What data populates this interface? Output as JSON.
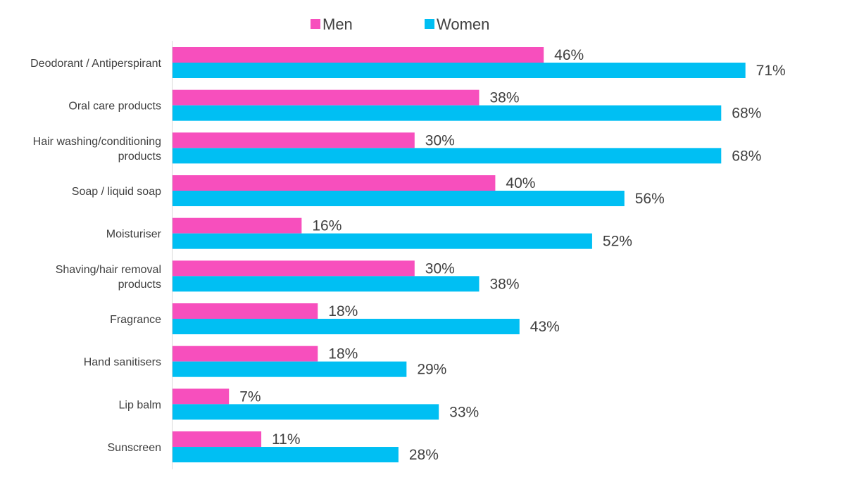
{
  "chart_data": {
    "type": "bar",
    "orientation": "horizontal",
    "categories": [
      [
        "Deodorant / Antiperspirant"
      ],
      [
        "Oral care products"
      ],
      [
        "Hair washing/conditioning",
        "products"
      ],
      [
        "Soap / liquid soap"
      ],
      [
        "Moisturiser"
      ],
      [
        "Shaving/hair removal",
        "products"
      ],
      [
        "Fragrance"
      ],
      [
        "Hand sanitisers"
      ],
      [
        "Lip balm"
      ],
      [
        "Sunscreen"
      ]
    ],
    "series": [
      {
        "name": "Men",
        "color": "#f74fbd",
        "values": [
          46,
          38,
          30,
          40,
          16,
          30,
          18,
          18,
          7,
          11
        ]
      },
      {
        "name": "Women",
        "color": "#00bff3",
        "values": [
          71,
          68,
          68,
          56,
          52,
          38,
          43,
          29,
          33,
          28
        ]
      }
    ],
    "value_suffix": "%",
    "xlim": [
      0,
      80
    ],
    "grid": false,
    "legend_position": "top"
  }
}
